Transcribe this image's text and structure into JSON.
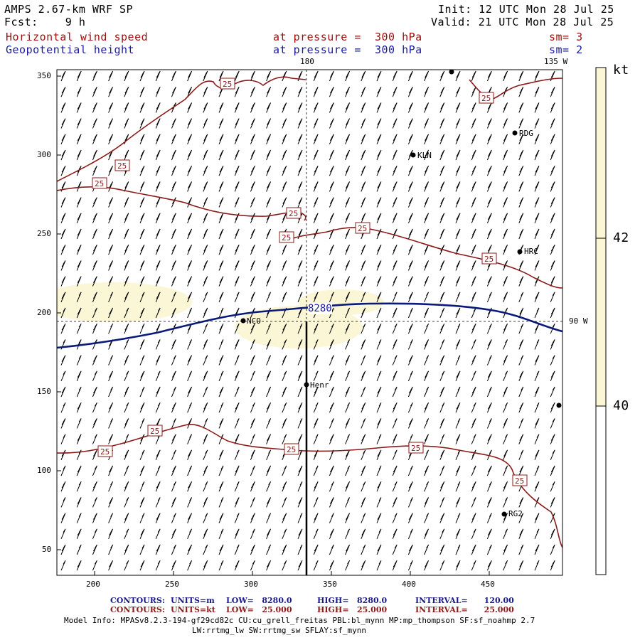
{
  "header": {
    "model": "AMPS 2.67-km WRF SP",
    "init": "Init: 12 UTC Mon 28 Jul 25",
    "fcst": "Fcst:    9 h",
    "valid": "Valid: 21 UTC Mon 28 Jul 25",
    "field1": "Horizontal wind speed",
    "field1_level": "at pressure =  300 hPa",
    "field1_sm": "sm= 3",
    "field2": "Geopotential height",
    "field2_level": "at pressure =  300 hPa",
    "field2_sm": "sm= 2"
  },
  "map": {
    "meridian_top_label": "180",
    "meridian_135_label": "135 W",
    "meridian_90_label": "90 W",
    "x_ticks": [
      "200",
      "250",
      "300",
      "350",
      "400",
      "450"
    ],
    "y_ticks": [
      "350",
      "300",
      "250",
      "200",
      "150",
      "100",
      "50"
    ],
    "height_contour_label": "8280",
    "speed_contour_label": "25",
    "stations": [
      "RDG",
      "KLN",
      "HRC",
      "NCO",
      "Henr",
      "RG2"
    ]
  },
  "colorbar": {
    "unit": "kt",
    "labels": [
      "42",
      "40"
    ],
    "fill_color": "#fbf6d6"
  },
  "footer": {
    "line1": {
      "contours": "CONTOURS:",
      "units": "UNITS=m",
      "low": "LOW=   8280.0",
      "high": "HIGH=   8280.0",
      "interval": "INTERVAL=      120.00"
    },
    "line2": {
      "contours": "CONTOURS:",
      "units": "UNITS=kt",
      "low": "LOW=   25.000",
      "high": "HIGH=   25.000",
      "interval": "INTERVAL=      25.000"
    },
    "model_info": "Model Info: MPASv8.2.3-194-gf29cd82c CU:cu_grell_freitas PBL:bl_mynn MP:mp_thompson SF:sf_noahmp 2.7",
    "model_info2": "LW:rrtmg_lw SW:rrtmg_sw SFLAY:sf_mynn"
  },
  "colors": {
    "height_contour": "#0a1a7a",
    "speed_contour": "#8b1a1a",
    "label_red": "#a01010",
    "label_blue": "#1a1aa0"
  }
}
